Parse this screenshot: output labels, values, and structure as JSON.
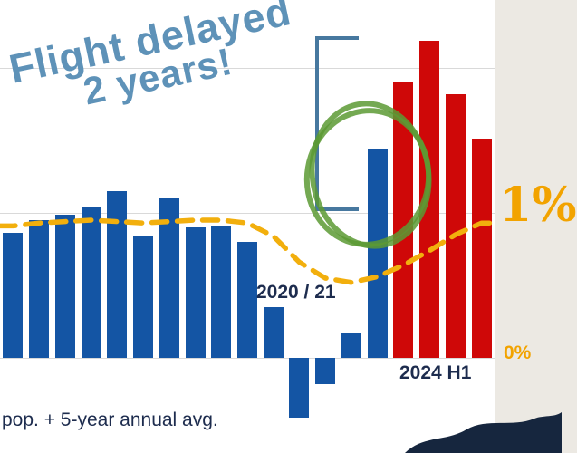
{
  "page": {
    "background": "#ece9e3",
    "plot_background": "#ffffff"
  },
  "colors": {
    "page_bg": "#ece9e3",
    "plot_bg": "#ffffff",
    "bar_blue": "#1455a4",
    "bar_red": "#cf0808",
    "line_yellow": "#f2af0d",
    "label_yellow": "#f2a300",
    "navy": "#1d2c4e",
    "note_blue": "#5e92b8",
    "green": "#5c9a34",
    "blob_navy": "#16263e",
    "bracket_blue": "#47789f",
    "gridline": "#d9d9d9"
  },
  "annotations": {
    "note_line1": "Flight delayed",
    "note_line2": "2 years!",
    "period_label_left": "2020 / 21",
    "period_label_right": "2024 H1",
    "caption": "pop. + 5-year annual avg."
  },
  "chart_data": {
    "type": "bar",
    "title": "",
    "xlabel": "",
    "ylabel": "",
    "ylim": [
      -0.65,
      2.45
    ],
    "grid": true,
    "gridlines": [
      0,
      1,
      2
    ],
    "yticks": [
      {
        "value": 0,
        "label": "0%"
      },
      {
        "value": 1,
        "label": "1%"
      }
    ],
    "bar_colors": {
      "blue": "#1455a4",
      "red": "#cf0808"
    },
    "bars": [
      {
        "value": 0.86,
        "color": "blue"
      },
      {
        "value": 0.95,
        "color": "blue"
      },
      {
        "value": 0.99,
        "color": "blue"
      },
      {
        "value": 1.04,
        "color": "blue"
      },
      {
        "value": 1.15,
        "color": "blue"
      },
      {
        "value": 0.84,
        "color": "blue"
      },
      {
        "value": 1.1,
        "color": "blue"
      },
      {
        "value": 0.9,
        "color": "blue"
      },
      {
        "value": 0.91,
        "color": "blue"
      },
      {
        "value": 0.8,
        "color": "blue"
      },
      {
        "value": 0.35,
        "color": "blue"
      },
      {
        "value": -0.41,
        "color": "blue"
      },
      {
        "value": -0.18,
        "color": "blue"
      },
      {
        "value": 0.17,
        "color": "blue"
      },
      {
        "value": 1.44,
        "color": "blue"
      },
      {
        "value": 1.9,
        "color": "red"
      },
      {
        "value": 2.19,
        "color": "red"
      },
      {
        "value": 1.82,
        "color": "red"
      },
      {
        "value": 1.51,
        "color": "red"
      }
    ],
    "line_series": {
      "name": "pop. + 5-year annual avg.",
      "style": "dashed",
      "color": "#f2af0d",
      "values": [
        0.91,
        0.93,
        0.94,
        0.95,
        0.94,
        0.93,
        0.94,
        0.95,
        0.95,
        0.93,
        0.84,
        0.66,
        0.55,
        0.52,
        0.56,
        0.64,
        0.74,
        0.85,
        0.93
      ]
    }
  }
}
